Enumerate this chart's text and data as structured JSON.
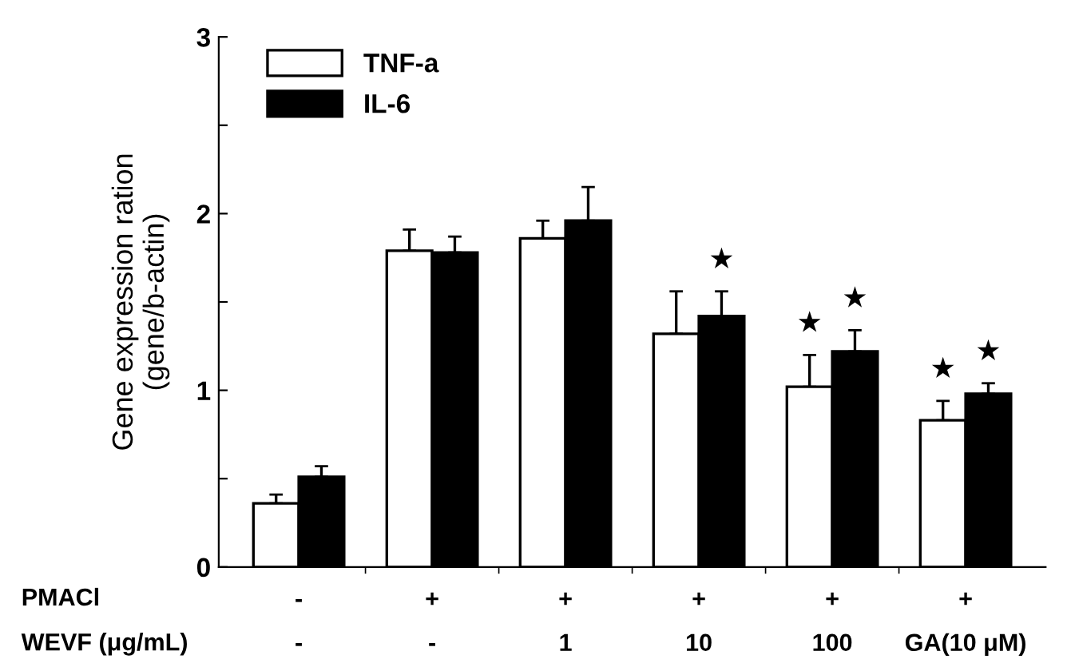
{
  "chart_data": {
    "type": "bar",
    "ylabel": "Gene expression ration\n(gene/b-actin)",
    "categories": [
      "-\n-",
      "+\n-",
      "+\n1",
      "+\n10",
      "+\n100",
      "+\nGA(10 μM)"
    ],
    "annotations": [
      "PMACl",
      "WEVF (μg/mL)"
    ],
    "series": [
      {
        "name": "TNF-a",
        "color": "#ffffff",
        "values": [
          0.36,
          1.79,
          1.86,
          1.32,
          1.02,
          0.83
        ],
        "errors": [
          [
            0.36,
            0.41
          ],
          [
            1.79,
            1.91
          ],
          [
            1.86,
            1.96
          ],
          [
            1.32,
            1.56
          ],
          [
            1.02,
            1.2
          ],
          [
            0.83,
            0.94
          ]
        ],
        "value_labels": [
          null,
          null,
          null,
          null,
          "★",
          "★"
        ]
      },
      {
        "name": "IL-6",
        "color": "#000000",
        "values": [
          0.51,
          1.78,
          1.96,
          1.42,
          1.22,
          0.98
        ],
        "errors": [
          [
            0.51,
            0.57
          ],
          [
            1.78,
            1.87
          ],
          [
            1.96,
            2.15
          ],
          [
            1.42,
            1.56
          ],
          [
            1.22,
            1.34
          ],
          [
            0.98,
            1.04
          ]
        ],
        "value_labels": [
          null,
          null,
          null,
          "★",
          "★",
          "★"
        ]
      }
    ],
    "ylim": [
      0,
      3
    ],
    "yticks": [
      0,
      {
        "value": 0.5,
        "label": null
      },
      1,
      {
        "value": 1.5,
        "label": null
      },
      2,
      {
        "value": 2.5,
        "label": null
      },
      3
    ],
    "legend": "top left",
    "grid": false
  }
}
